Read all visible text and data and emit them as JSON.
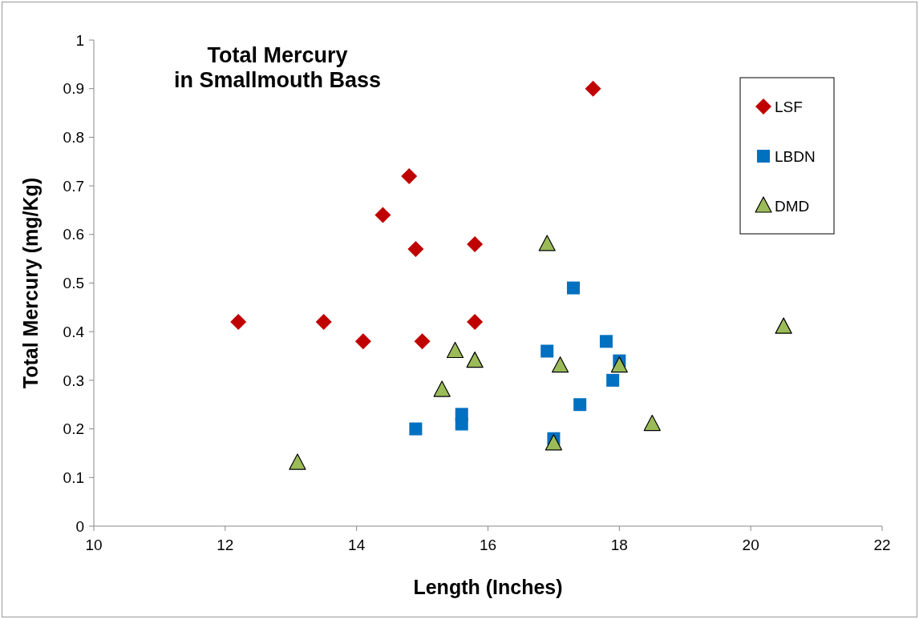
{
  "chart_data": {
    "type": "scatter",
    "title": "Total Mercury\nin Smallmouth Bass",
    "xlabel": "Length (Inches)",
    "ylabel": "Total Mercury (mg/Kg)",
    "xlim": [
      10,
      22
    ],
    "xticks": [
      10,
      12,
      14,
      16,
      18,
      20,
      22
    ],
    "ylim": [
      0,
      1
    ],
    "yticks": [
      0,
      0.1,
      0.2,
      0.3,
      0.4,
      0.5,
      0.6,
      0.7,
      0.8,
      0.9,
      1
    ],
    "grid": false,
    "legend": "top right",
    "series": [
      {
        "name": "LSF",
        "color": "#c00000",
        "marker": "diamond",
        "x": [
          12.2,
          13.5,
          14.1,
          14.4,
          14.8,
          14.9,
          15.0,
          15.8,
          15.8,
          17.6
        ],
        "values": [
          0.42,
          0.42,
          0.38,
          0.64,
          0.72,
          0.57,
          0.38,
          0.58,
          0.42,
          0.9
        ]
      },
      {
        "name": "LBDN",
        "color": "#0070c0",
        "marker": "square",
        "x": [
          14.9,
          15.6,
          15.6,
          16.9,
          17.0,
          17.3,
          17.4,
          17.8,
          17.9,
          18.0
        ],
        "values": [
          0.2,
          0.23,
          0.21,
          0.36,
          0.18,
          0.49,
          0.25,
          0.38,
          0.3,
          0.34
        ]
      },
      {
        "name": "DMD",
        "color": "#9bbb59",
        "marker": "triangle",
        "x": [
          13.1,
          15.3,
          15.5,
          15.8,
          16.9,
          17.0,
          17.1,
          18.0,
          18.5,
          20.5
        ],
        "values": [
          0.13,
          0.28,
          0.36,
          0.34,
          0.58,
          0.17,
          0.33,
          0.33,
          0.21,
          0.41
        ]
      }
    ]
  }
}
